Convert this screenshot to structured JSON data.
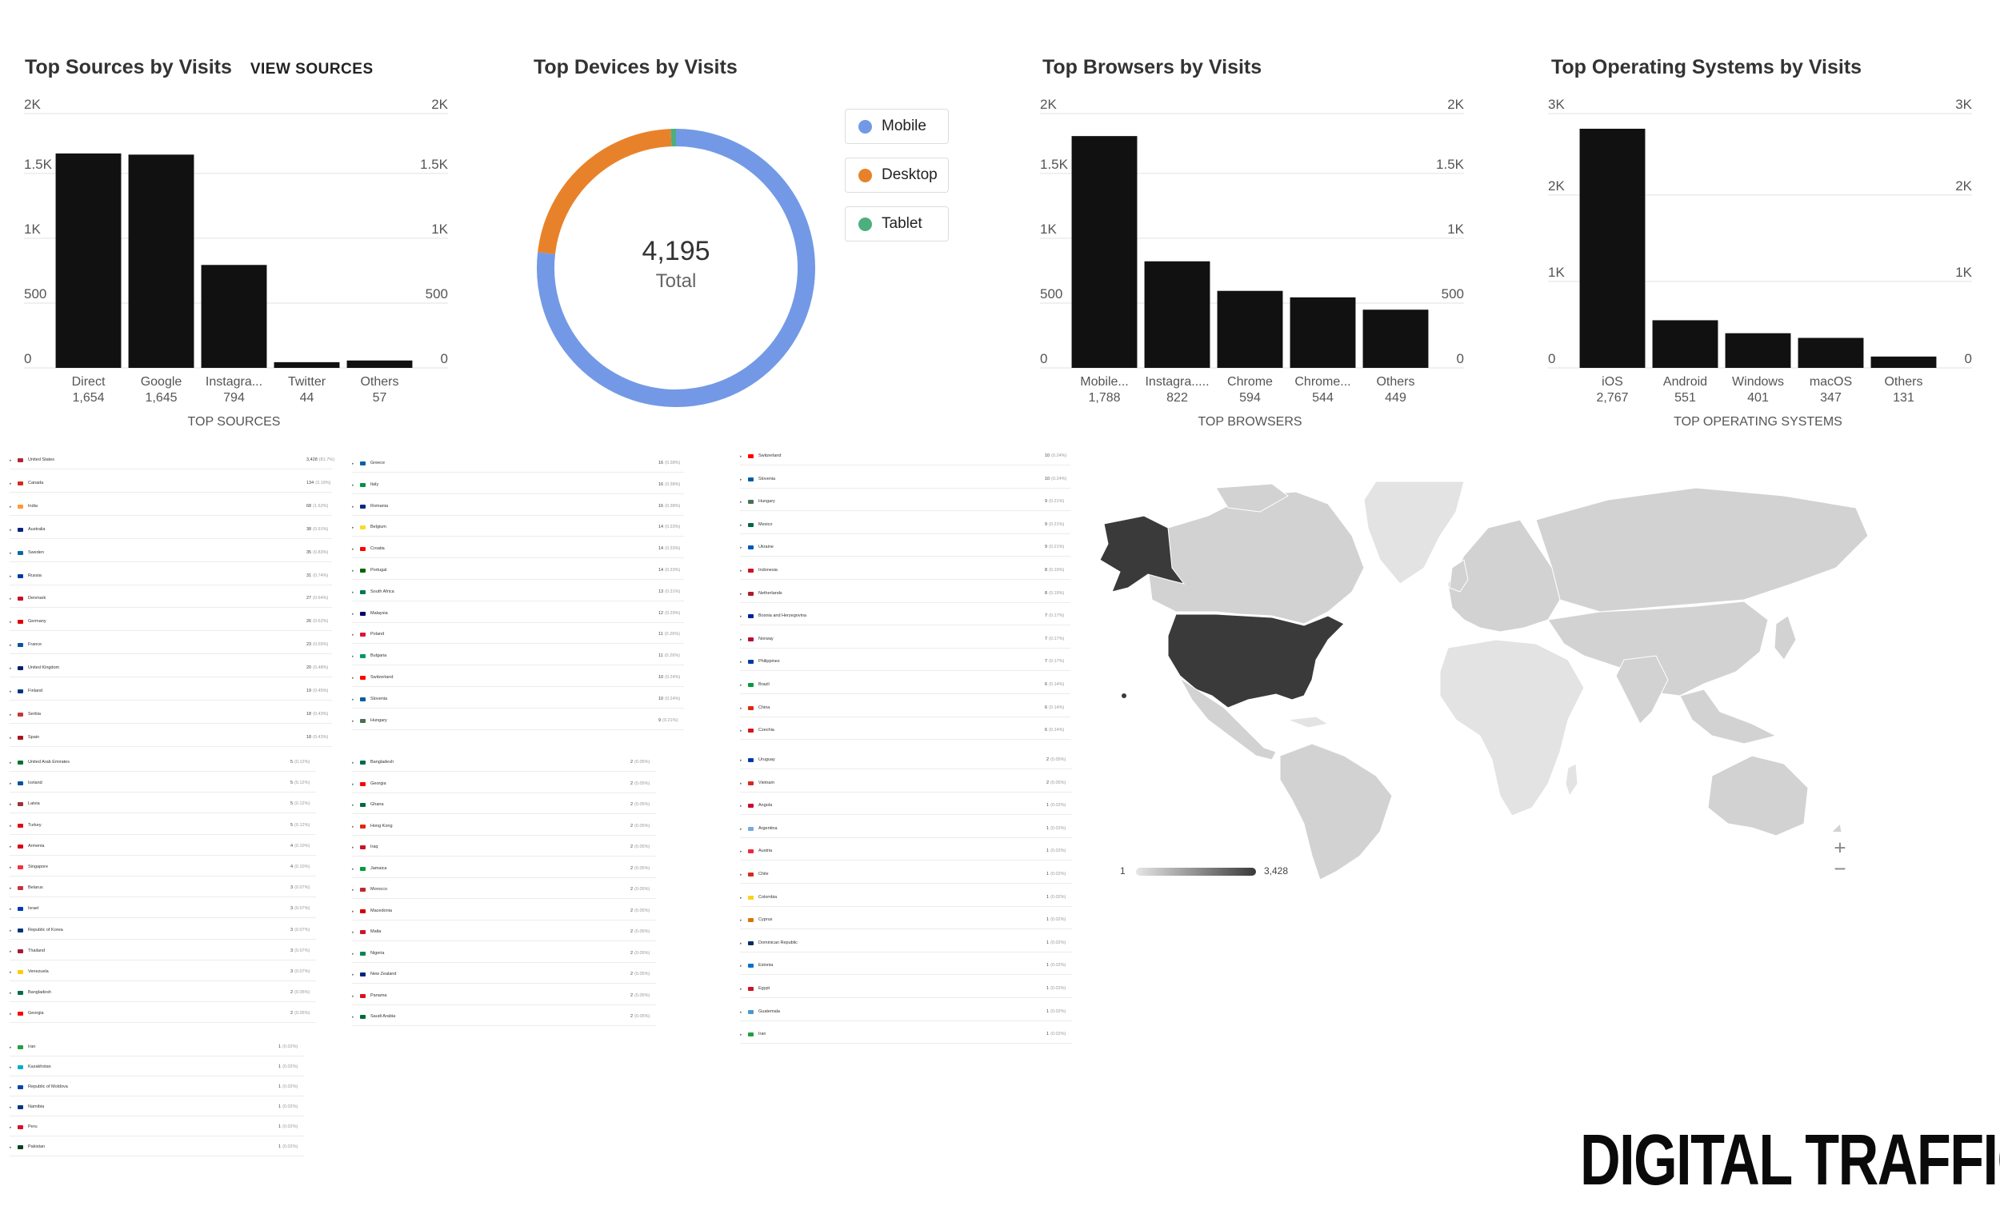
{
  "sources_panel": {
    "title": "Top Sources by Visits",
    "view_link": "VIEW SOURCES",
    "axis_caption": "TOP SOURCES"
  },
  "devices_panel": {
    "title": "Top Devices by Visits",
    "total_value": "4,195",
    "total_label": "Total"
  },
  "browsers_panel": {
    "title": "Top Browsers by Visits",
    "axis_caption": "TOP BROWSERS"
  },
  "os_panel": {
    "title": "Top Operating Systems by Visits",
    "axis_caption": "TOP OPERATING SYSTEMS"
  },
  "chart_data": [
    {
      "id": "sources",
      "type": "bar",
      "title": "Top Sources by Visits",
      "xlabel": "TOP SOURCES",
      "ylabel": "",
      "categories": [
        "Direct",
        "Google",
        "Instagra...",
        "Twitter",
        "Others"
      ],
      "values": [
        1654,
        1645,
        794,
        44,
        57
      ],
      "value_labels": [
        "1,654",
        "1,645",
        "794",
        "44",
        "57"
      ],
      "yticks": [
        0,
        500,
        1000,
        1500,
        2000
      ],
      "ytick_labels": [
        "0",
        "500",
        "1K",
        "1.5K",
        "2K"
      ],
      "ylim": [
        0,
        1900
      ],
      "grid": true,
      "bar_color": "#111111"
    },
    {
      "id": "devices",
      "type": "pie",
      "title": "Top Devices by Visits",
      "categories": [
        "Mobile",
        "Desktop",
        "Tablet"
      ],
      "values": [
        3222,
        948,
        25
      ],
      "colors": [
        "#7399e6",
        "#e8822a",
        "#4caf7d"
      ],
      "total": 4195,
      "legend": "right"
    },
    {
      "id": "browsers",
      "type": "bar",
      "title": "Top Browsers by Visits",
      "xlabel": "TOP BROWSERS",
      "ylabel": "",
      "categories": [
        "Mobile...",
        "Instagra.....",
        "Chrome",
        "Chrome...",
        "Others"
      ],
      "values": [
        1788,
        822,
        594,
        544,
        449
      ],
      "value_labels": [
        "1,788",
        "822",
        "594",
        "544",
        "449"
      ],
      "yticks": [
        0,
        500,
        1000,
        1500,
        2000
      ],
      "ytick_labels": [
        "0",
        "500",
        "1K",
        "1.5K",
        "2K"
      ],
      "ylim": [
        0,
        1900
      ],
      "grid": true,
      "bar_color": "#111111"
    },
    {
      "id": "os",
      "type": "bar",
      "title": "Top Operating Systems by Visits",
      "xlabel": "TOP OPERATING SYSTEMS",
      "ylabel": "",
      "categories": [
        "iOS",
        "Android",
        "Windows",
        "macOS",
        "Others"
      ],
      "values": [
        2767,
        551,
        401,
        347,
        131
      ],
      "value_labels": [
        "2,767",
        "551",
        "401",
        "347",
        "131"
      ],
      "yticks": [
        0,
        1000,
        2000,
        3000
      ],
      "ytick_labels": [
        "0",
        "1K",
        "2K",
        "3K"
      ],
      "ylim": [
        0,
        2850
      ],
      "grid": true,
      "bar_color": "#111111"
    }
  ],
  "country_table": {
    "block1": [
      {
        "name": "United States",
        "value": "3,428",
        "pct": "(81.7%)",
        "flag": "#b22234"
      },
      {
        "name": "Canada",
        "value": "134",
        "pct": "(3.19%)",
        "flag": "#d52b1e"
      },
      {
        "name": "India",
        "value": "68",
        "pct": "(1.62%)",
        "flag": "#ff9933"
      },
      {
        "name": "Australia",
        "value": "38",
        "pct": "(0.91%)",
        "flag": "#00247d"
      },
      {
        "name": "Sweden",
        "value": "35",
        "pct": "(0.83%)",
        "flag": "#006aa7"
      },
      {
        "name": "Russia",
        "value": "31",
        "pct": "(0.74%)",
        "flag": "#0039a6"
      },
      {
        "name": "Denmark",
        "value": "27",
        "pct": "(0.64%)",
        "flag": "#c8102e"
      },
      {
        "name": "Germany",
        "value": "26",
        "pct": "(0.62%)",
        "flag": "#dd0000"
      },
      {
        "name": "France",
        "value": "23",
        "pct": "(0.55%)",
        "flag": "#0055a4"
      },
      {
        "name": "United Kingdom",
        "value": "20",
        "pct": "(0.48%)",
        "flag": "#012169"
      },
      {
        "name": "Finland",
        "value": "19",
        "pct": "(0.45%)",
        "flag": "#003580"
      },
      {
        "name": "Serbia",
        "value": "18",
        "pct": "(0.43%)",
        "flag": "#c6363c"
      },
      {
        "name": "Spain",
        "value": "18",
        "pct": "(0.43%)",
        "flag": "#aa151b"
      }
    ],
    "block2": [
      {
        "name": "Greece",
        "value": "16",
        "pct": "(0.38%)",
        "flag": "#0d5eaf"
      },
      {
        "name": "Italy",
        "value": "16",
        "pct": "(0.38%)",
        "flag": "#009246"
      },
      {
        "name": "Romania",
        "value": "16",
        "pct": "(0.38%)",
        "flag": "#002b7f"
      },
      {
        "name": "Belgium",
        "value": "14",
        "pct": "(0.33%)",
        "flag": "#fdda24"
      },
      {
        "name": "Croatia",
        "value": "14",
        "pct": "(0.33%)",
        "flag": "#ff0000"
      },
      {
        "name": "Portugal",
        "value": "14",
        "pct": "(0.33%)",
        "flag": "#006600"
      },
      {
        "name": "South Africa",
        "value": "13",
        "pct": "(0.31%)",
        "flag": "#007a4d"
      },
      {
        "name": "Malaysia",
        "value": "12",
        "pct": "(0.29%)",
        "flag": "#010066"
      },
      {
        "name": "Poland",
        "value": "11",
        "pct": "(0.26%)",
        "flag": "#dc143c"
      },
      {
        "name": "Bulgaria",
        "value": "11",
        "pct": "(0.26%)",
        "flag": "#00966e"
      },
      {
        "name": "Switzerland",
        "value": "10",
        "pct": "(0.24%)",
        "flag": "#ff0000"
      },
      {
        "name": "Slovenia",
        "value": "10",
        "pct": "(0.24%)",
        "flag": "#005da4"
      },
      {
        "name": "Hungary",
        "value": "9",
        "pct": "(0.21%)",
        "flag": "#477050"
      }
    ],
    "block3": [
      {
        "name": "Switzerland",
        "value": "10",
        "pct": "(0.24%)",
        "flag": "#ff0000"
      },
      {
        "name": "Slovenia",
        "value": "10",
        "pct": "(0.24%)",
        "flag": "#005da4"
      },
      {
        "name": "Hungary",
        "value": "9",
        "pct": "(0.21%)",
        "flag": "#477050"
      },
      {
        "name": "Mexico",
        "value": "9",
        "pct": "(0.21%)",
        "flag": "#006847"
      },
      {
        "name": "Ukraine",
        "value": "9",
        "pct": "(0.21%)",
        "flag": "#0057b7"
      },
      {
        "name": "Indonesia",
        "value": "8",
        "pct": "(0.19%)",
        "flag": "#ce1126"
      },
      {
        "name": "Netherlands",
        "value": "8",
        "pct": "(0.19%)",
        "flag": "#ae1c28"
      },
      {
        "name": "Bosnia and Herzegovina",
        "value": "7",
        "pct": "(0.17%)",
        "flag": "#002395"
      },
      {
        "name": "Norway",
        "value": "7",
        "pct": "(0.17%)",
        "flag": "#ba0c2f"
      },
      {
        "name": "Philippines",
        "value": "7",
        "pct": "(0.17%)",
        "flag": "#0038a8"
      },
      {
        "name": "Brazil",
        "value": "6",
        "pct": "(0.14%)",
        "flag": "#009c3b"
      },
      {
        "name": "China",
        "value": "6",
        "pct": "(0.14%)",
        "flag": "#de2910"
      },
      {
        "name": "Czechia",
        "value": "6",
        "pct": "(0.14%)",
        "flag": "#d7141a"
      }
    ],
    "block4": [
      {
        "name": "United Arab Emirates",
        "value": "5",
        "pct": "(0.12%)",
        "flag": "#00732f"
      },
      {
        "name": "Iceland",
        "value": "5",
        "pct": "(0.12%)",
        "flag": "#02529c"
      },
      {
        "name": "Latvia",
        "value": "5",
        "pct": "(0.12%)",
        "flag": "#9e3039"
      },
      {
        "name": "Turkey",
        "value": "5",
        "pct": "(0.12%)",
        "flag": "#e30a17"
      },
      {
        "name": "Armenia",
        "value": "4",
        "pct": "(0.10%)",
        "flag": "#d90012"
      },
      {
        "name": "Singapore",
        "value": "4",
        "pct": "(0.10%)",
        "flag": "#ef3340"
      },
      {
        "name": "Belarus",
        "value": "3",
        "pct": "(0.07%)",
        "flag": "#c8313e"
      },
      {
        "name": "Israel",
        "value": "3",
        "pct": "(0.07%)",
        "flag": "#0038b8"
      },
      {
        "name": "Republic of Korea",
        "value": "3",
        "pct": "(0.07%)",
        "flag": "#003478"
      },
      {
        "name": "Thailand",
        "value": "3",
        "pct": "(0.07%)",
        "flag": "#a51931"
      },
      {
        "name": "Venezuela",
        "value": "3",
        "pct": "(0.07%)",
        "flag": "#ffcc00"
      },
      {
        "name": "Bangladesh",
        "value": "2",
        "pct": "(0.05%)",
        "flag": "#006a4e"
      },
      {
        "name": "Georgia",
        "value": "2",
        "pct": "(0.05%)",
        "flag": "#ff0000"
      }
    ],
    "block5": [
      {
        "name": "Bangladesh",
        "value": "2",
        "pct": "(0.05%)",
        "flag": "#006a4e"
      },
      {
        "name": "Georgia",
        "value": "2",
        "pct": "(0.05%)",
        "flag": "#ff0000"
      },
      {
        "name": "Ghana",
        "value": "2",
        "pct": "(0.05%)",
        "flag": "#006b3f"
      },
      {
        "name": "Hong Kong",
        "value": "2",
        "pct": "(0.05%)",
        "flag": "#de2910"
      },
      {
        "name": "Iraq",
        "value": "2",
        "pct": "(0.05%)",
        "flag": "#ce1126"
      },
      {
        "name": "Jamaica",
        "value": "2",
        "pct": "(0.05%)",
        "flag": "#009b3a"
      },
      {
        "name": "Morocco",
        "value": "2",
        "pct": "(0.05%)",
        "flag": "#c1272d"
      },
      {
        "name": "Macedonia",
        "value": "2",
        "pct": "(0.05%)",
        "flag": "#d20000"
      },
      {
        "name": "Malta",
        "value": "2",
        "pct": "(0.05%)",
        "flag": "#cf142b"
      },
      {
        "name": "Nigeria",
        "value": "2",
        "pct": "(0.05%)",
        "flag": "#008751"
      },
      {
        "name": "New Zealand",
        "value": "2",
        "pct": "(0.05%)",
        "flag": "#00247d"
      },
      {
        "name": "Panama",
        "value": "2",
        "pct": "(0.05%)",
        "flag": "#da121a"
      },
      {
        "name": "Saudi Arabia",
        "value": "2",
        "pct": "(0.05%)",
        "flag": "#006c35"
      }
    ],
    "block6": [
      {
        "name": "Uruguay",
        "value": "2",
        "pct": "(0.05%)",
        "flag": "#0038a8"
      },
      {
        "name": "Vietnam",
        "value": "2",
        "pct": "(0.05%)",
        "flag": "#da251d"
      },
      {
        "name": "Angola",
        "value": "1",
        "pct": "(0.02%)",
        "flag": "#cc092f"
      },
      {
        "name": "Argentina",
        "value": "1",
        "pct": "(0.02%)",
        "flag": "#74acdf"
      },
      {
        "name": "Austria",
        "value": "1",
        "pct": "(0.02%)",
        "flag": "#ed2939"
      },
      {
        "name": "Chile",
        "value": "1",
        "pct": "(0.02%)",
        "flag": "#d52b1e"
      },
      {
        "name": "Colombia",
        "value": "1",
        "pct": "(0.02%)",
        "flag": "#fcd116"
      },
      {
        "name": "Cyprus",
        "value": "1",
        "pct": "(0.02%)",
        "flag": "#d57800"
      },
      {
        "name": "Dominican Republic",
        "value": "1",
        "pct": "(0.02%)",
        "flag": "#002d62"
      },
      {
        "name": "Estonia",
        "value": "1",
        "pct": "(0.02%)",
        "flag": "#0072ce"
      },
      {
        "name": "Egypt",
        "value": "1",
        "pct": "(0.02%)",
        "flag": "#ce1126"
      },
      {
        "name": "Guatemala",
        "value": "1",
        "pct": "(0.02%)",
        "flag": "#4997d0"
      },
      {
        "name": "Iran",
        "value": "1",
        "pct": "(0.02%)",
        "flag": "#239f40"
      }
    ],
    "block7": [
      {
        "name": "Iran",
        "value": "1",
        "pct": "(0.02%)",
        "flag": "#239f40"
      },
      {
        "name": "Kazakhstan",
        "value": "1",
        "pct": "(0.02%)",
        "flag": "#00afca"
      },
      {
        "name": "Republic of Moldova",
        "value": "1",
        "pct": "(0.02%)",
        "flag": "#0046ae"
      },
      {
        "name": "Namibia",
        "value": "1",
        "pct": "(0.02%)",
        "flag": "#003580"
      },
      {
        "name": "Peru",
        "value": "1",
        "pct": "(0.02%)",
        "flag": "#d91023"
      },
      {
        "name": "Pakistan",
        "value": "1",
        "pct": "(0.02%)",
        "flag": "#01411c"
      }
    ]
  },
  "map": {
    "scale_min": "1",
    "scale_max": "3,428",
    "zoom_in": "+",
    "zoom_out": "−",
    "colors": {
      "land": "#d2d2d2",
      "land_light": "#e3e3e3",
      "highlight": "#3a3a3a",
      "medium": "#bdbdbd"
    }
  },
  "icons": {
    "row_arrow": "triangle-right-icon",
    "zoom_in": "plus-icon",
    "zoom_out": "minus-icon"
  },
  "brand": {
    "text": "DIGITAL TRAFFIC"
  }
}
